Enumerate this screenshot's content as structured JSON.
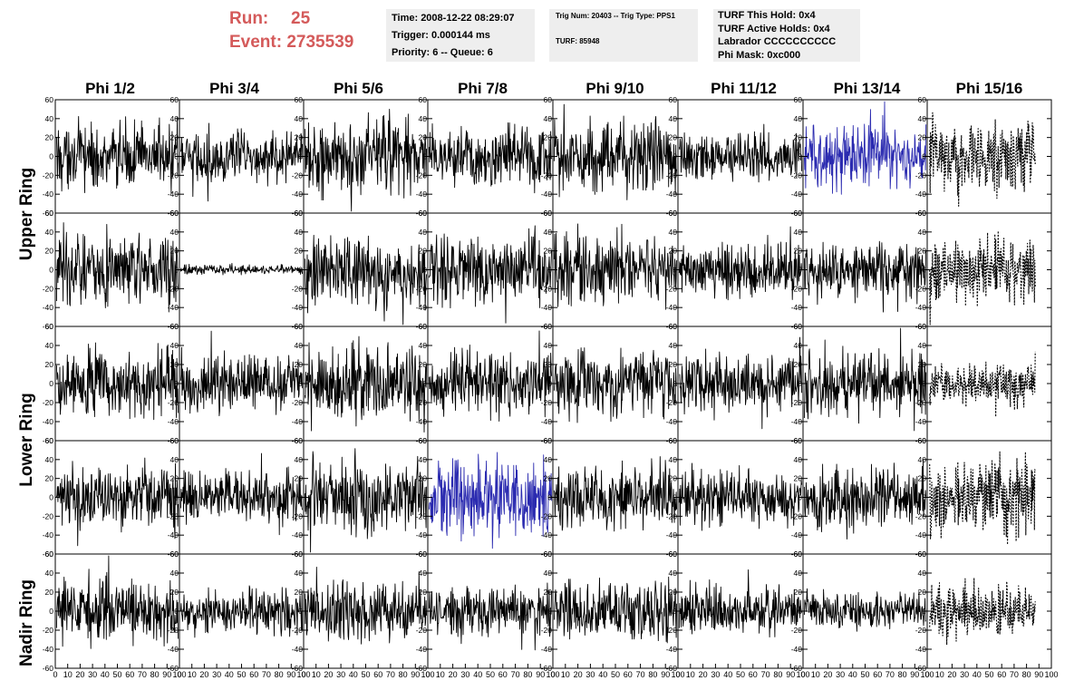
{
  "header": {
    "run_label": "Run:",
    "run_value": "25",
    "event_label": "Event:",
    "event_value": "2735539"
  },
  "info_time": {
    "time": "Time: 2008-12-22 08:29:07",
    "trigger": "Trigger: 0.000144 ms",
    "priority": "Priority: 6 -- Queue: 6"
  },
  "info_trig": {
    "trig": "Trig Num: 20403 -- Trig Type: PPS1",
    "turf": "TURF: 85948"
  },
  "info_turf": {
    "this_hold": "TURF This Hold: 0x4",
    "active_holds": "TURF Active Holds: 0x4",
    "labrador": "Labrador CCCCCCCCCC",
    "phi_mask": "Phi Mask: 0xc000"
  },
  "columns": [
    "Phi 1/2",
    "Phi 3/4",
    "Phi 5/6",
    "Phi 7/8",
    "Phi 9/10",
    "Phi 11/12",
    "Phi 13/14",
    "Phi 15/16"
  ],
  "rows": [
    "Upper Ring",
    "Lower Ring",
    "Nadir Ring"
  ],
  "colors": {
    "normal": "#000000",
    "highlight": "#2b2bb0",
    "masked": "#000000"
  },
  "chart_data": {
    "type": "line",
    "grid": false,
    "ylim": [
      -60,
      60
    ],
    "xlim": [
      0,
      100
    ],
    "y_ticks": [
      "60",
      "40",
      "20",
      "0",
      "-20",
      "-40",
      "-60"
    ],
    "x_ticks": [
      "0",
      "10",
      "20",
      "30",
      "40",
      "50",
      "60",
      "70",
      "80",
      "90",
      "100"
    ],
    "panel_rows": 5,
    "panel_cols": 8,
    "masked_column": "Phi 15/16",
    "panels": [
      {
        "row": 1,
        "col": "Phi 1/2",
        "amplitude": 25,
        "style": "solid"
      },
      {
        "row": 1,
        "col": "Phi 3/4",
        "amplitude": 20,
        "style": "solid"
      },
      {
        "row": 1,
        "col": "Phi 5/6",
        "amplitude": 30,
        "style": "solid"
      },
      {
        "row": 1,
        "col": "Phi 7/8",
        "amplitude": 25,
        "style": "solid"
      },
      {
        "row": 1,
        "col": "Phi 9/10",
        "amplitude": 28,
        "style": "solid"
      },
      {
        "row": 1,
        "col": "Phi 11/12",
        "amplitude": 18,
        "style": "solid"
      },
      {
        "row": 1,
        "col": "Phi 13/14",
        "amplitude": 25,
        "style": "highlight"
      },
      {
        "row": 1,
        "col": "Phi 15/16",
        "amplitude": 25,
        "style": "dashed"
      },
      {
        "row": 2,
        "col": "Phi 1/2",
        "amplitude": 28,
        "style": "solid"
      },
      {
        "row": 2,
        "col": "Phi 3/4",
        "amplitude": 4,
        "style": "solid"
      },
      {
        "row": 2,
        "col": "Phi 5/6",
        "amplitude": 28,
        "style": "solid"
      },
      {
        "row": 2,
        "col": "Phi 7/8",
        "amplitude": 27,
        "style": "solid"
      },
      {
        "row": 2,
        "col": "Phi 9/10",
        "amplitude": 27,
        "style": "solid"
      },
      {
        "row": 2,
        "col": "Phi 11/12",
        "amplitude": 20,
        "style": "solid"
      },
      {
        "row": 2,
        "col": "Phi 13/14",
        "amplitude": 22,
        "style": "solid"
      },
      {
        "row": 2,
        "col": "Phi 15/16",
        "amplitude": 25,
        "style": "dashed"
      },
      {
        "row": 3,
        "col": "Phi 1/2",
        "amplitude": 27,
        "style": "solid"
      },
      {
        "row": 3,
        "col": "Phi 3/4",
        "amplitude": 22,
        "style": "solid"
      },
      {
        "row": 3,
        "col": "Phi 5/6",
        "amplitude": 28,
        "style": "solid"
      },
      {
        "row": 3,
        "col": "Phi 7/8",
        "amplitude": 25,
        "style": "solid"
      },
      {
        "row": 3,
        "col": "Phi 9/10",
        "amplitude": 25,
        "style": "solid"
      },
      {
        "row": 3,
        "col": "Phi 11/12",
        "amplitude": 22,
        "style": "solid"
      },
      {
        "row": 3,
        "col": "Phi 13/14",
        "amplitude": 25,
        "style": "solid"
      },
      {
        "row": 3,
        "col": "Phi 15/16",
        "amplitude": 15,
        "style": "dashed"
      },
      {
        "row": 4,
        "col": "Phi 1/2",
        "amplitude": 25,
        "style": "solid"
      },
      {
        "row": 4,
        "col": "Phi 3/4",
        "amplitude": 20,
        "style": "solid"
      },
      {
        "row": 4,
        "col": "Phi 5/6",
        "amplitude": 28,
        "style": "solid"
      },
      {
        "row": 4,
        "col": "Phi 7/8",
        "amplitude": 30,
        "style": "highlight"
      },
      {
        "row": 4,
        "col": "Phi 9/10",
        "amplitude": 25,
        "style": "solid"
      },
      {
        "row": 4,
        "col": "Phi 11/12",
        "amplitude": 20,
        "style": "solid"
      },
      {
        "row": 4,
        "col": "Phi 13/14",
        "amplitude": 25,
        "style": "solid"
      },
      {
        "row": 4,
        "col": "Phi 15/16",
        "amplitude": 30,
        "style": "dashed"
      },
      {
        "row": 5,
        "col": "Phi 1/2",
        "amplitude": 25,
        "style": "solid"
      },
      {
        "row": 5,
        "col": "Phi 3/4",
        "amplitude": 18,
        "style": "solid"
      },
      {
        "row": 5,
        "col": "Phi 5/6",
        "amplitude": 25,
        "style": "solid"
      },
      {
        "row": 5,
        "col": "Phi 7/8",
        "amplitude": 18,
        "style": "solid"
      },
      {
        "row": 5,
        "col": "Phi 9/10",
        "amplitude": 22,
        "style": "solid"
      },
      {
        "row": 5,
        "col": "Phi 11/12",
        "amplitude": 18,
        "style": "solid"
      },
      {
        "row": 5,
        "col": "Phi 13/14",
        "amplitude": 15,
        "style": "solid"
      },
      {
        "row": 5,
        "col": "Phi 15/16",
        "amplitude": 20,
        "style": "dashed"
      }
    ]
  }
}
